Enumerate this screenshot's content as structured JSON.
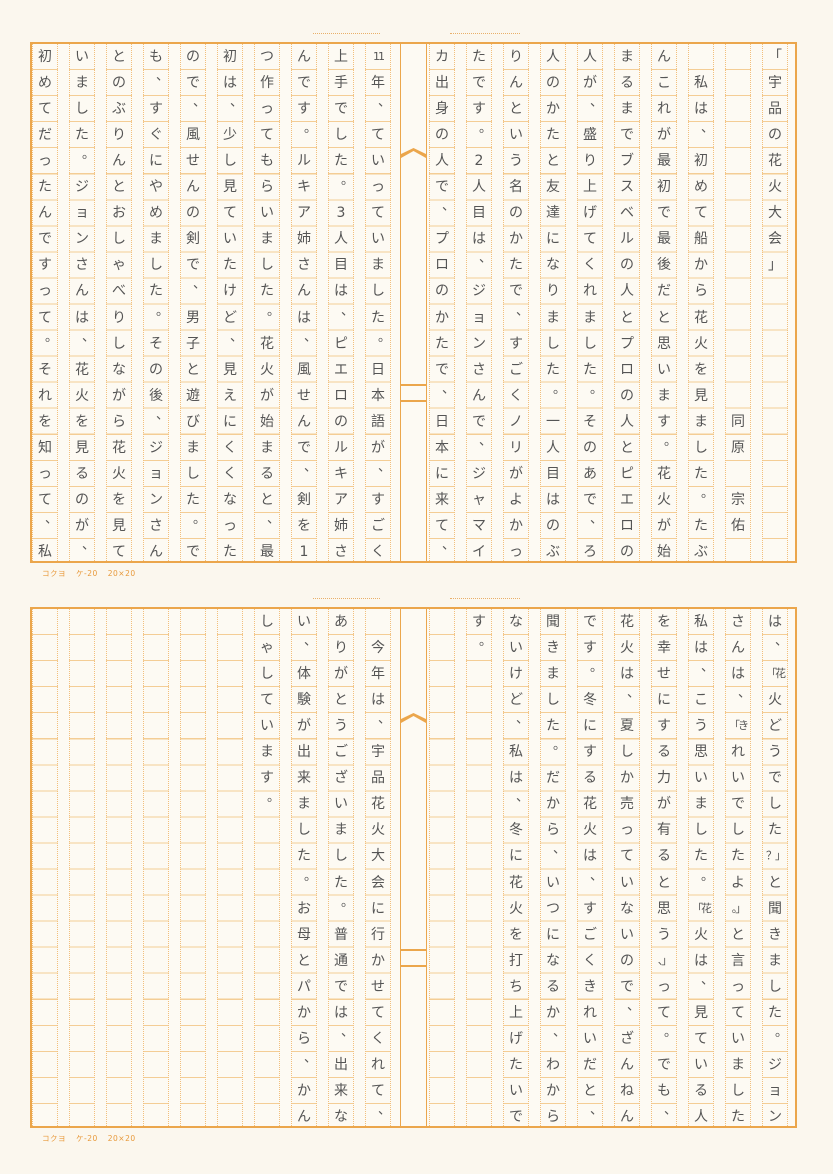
{
  "document": {
    "type": "genkou-youshi manuscript paper",
    "line_color": "#eba64c",
    "ink_color": "#555555"
  },
  "sheets": [
    {
      "columns": [
        [
          "「",
          "宇",
          "品",
          "の",
          "花",
          "火",
          "大",
          "会",
          "」",
          "",
          "",
          "",
          "",
          "",
          "",
          "",
          "",
          "",
          "",
          ""
        ],
        [
          "",
          "",
          "",
          "",
          "",
          "",
          "",
          "",
          "",
          "",
          "",
          "",
          "",
          "",
          "同",
          "原",
          "",
          "宗",
          "佑",
          ""
        ],
        [
          "",
          "私",
          "は",
          "、",
          "初",
          "め",
          "て",
          "船",
          "か",
          "ら",
          "花",
          "火",
          "を",
          "見",
          "ま",
          "し",
          "た",
          "。",
          "た",
          "ぶ"
        ],
        [
          "ん",
          "こ",
          "れ",
          "が",
          "最",
          "初",
          "で",
          "最",
          "後",
          "だ",
          "と",
          "思",
          "い",
          "ま",
          "す",
          "。",
          "花",
          "火",
          "が",
          "始"
        ],
        [
          "ま",
          "る",
          "ま",
          "で",
          "ブ",
          "ス",
          "ベ",
          "ル",
          "の",
          "人",
          "と",
          "プ",
          "ロ",
          "の",
          "人",
          "と",
          "ピ",
          "エ",
          "ロ",
          "の"
        ],
        [
          "人",
          "が",
          "、",
          "盛",
          "り",
          "上",
          "げ",
          "て",
          "く",
          "れ",
          "ま",
          "し",
          "た",
          "。",
          "そ",
          "の",
          "あ",
          "で",
          "、",
          "ろ"
        ],
        [
          "人",
          "の",
          "か",
          "た",
          "と",
          "友",
          "達",
          "に",
          "な",
          "り",
          "ま",
          "し",
          "た",
          "。",
          "一",
          "人",
          "目",
          "は",
          "の",
          "ぶ"
        ],
        [
          "り",
          "ん",
          "と",
          "い",
          "う",
          "名",
          "の",
          "か",
          "た",
          "で",
          "、",
          "す",
          "ご",
          "く",
          "ノ",
          "リ",
          "が",
          "よ",
          "か",
          "っ"
        ],
        [
          "た",
          "で",
          "す",
          "。",
          "2",
          "人",
          "目",
          "は",
          "、",
          "ジ",
          "ョ",
          "ン",
          "さ",
          "ん",
          "で",
          "、",
          "ジ",
          "ャ",
          "マ",
          "イ"
        ],
        [
          "カ",
          "出",
          "身",
          "の",
          "人",
          "で",
          "、",
          "プ",
          "ロ",
          "の",
          "か",
          "た",
          "で",
          "、",
          "日",
          "本",
          "に",
          "来",
          "て",
          "、"
        ],
        [
          "11",
          "年",
          "、",
          "て",
          "い",
          "っ",
          "て",
          "い",
          "ま",
          "し",
          "た",
          "。",
          "日",
          "本",
          "語",
          "が",
          "、",
          "す",
          "ご",
          "く"
        ],
        [
          "上",
          "手",
          "で",
          "し",
          "た",
          "。",
          "3",
          "人",
          "目",
          "は",
          "、",
          "ピ",
          "エ",
          "ロ",
          "の",
          "ル",
          "キ",
          "ア",
          "姉",
          "さ"
        ],
        [
          "ん",
          "で",
          "す",
          "。",
          "ル",
          "キ",
          "ア",
          "姉",
          "さ",
          "ん",
          "は",
          "、",
          "風",
          "せ",
          "ん",
          "で",
          "、",
          "剣",
          "を",
          "1"
        ],
        [
          "つ",
          "作",
          "っ",
          "て",
          "も",
          "ら",
          "い",
          "ま",
          "し",
          "た",
          "。",
          "花",
          "火",
          "が",
          "始",
          "ま",
          "る",
          "と",
          "、",
          "最"
        ],
        [
          "初",
          "は",
          "、",
          "少",
          "し",
          "見",
          "て",
          "い",
          "た",
          "け",
          "ど",
          "、",
          "見",
          "え",
          "に",
          "く",
          "く",
          "な",
          "っ",
          "た"
        ],
        [
          "の",
          "で",
          "、",
          "風",
          "せ",
          "ん",
          "の",
          "剣",
          "で",
          "、",
          "男",
          "子",
          "と",
          "遊",
          "び",
          "ま",
          "し",
          "た",
          "。",
          "で"
        ],
        [
          "も",
          "、",
          "す",
          "ぐ",
          "に",
          "や",
          "め",
          "ま",
          "し",
          "た",
          "。",
          "そ",
          "の",
          "後",
          "、",
          "ジ",
          "ョ",
          "ン",
          "さ",
          "ん"
        ],
        [
          "と",
          "の",
          "ぶ",
          "り",
          "ん",
          "と",
          "お",
          "し",
          "ゃ",
          "べ",
          "り",
          "し",
          "な",
          "が",
          "ら",
          "花",
          "火",
          "を",
          "見",
          "て"
        ],
        [
          "い",
          "ま",
          "し",
          "た",
          "。",
          "ジ",
          "ョ",
          "ン",
          "さ",
          "ん",
          "は",
          "、",
          "花",
          "火",
          "を",
          "見",
          "る",
          "の",
          "が",
          "、"
        ],
        [
          "初",
          "め",
          "て",
          "だ",
          "っ",
          "た",
          "ん",
          "で",
          "す",
          "っ",
          "て",
          "。",
          "そ",
          "れ",
          "を",
          "知",
          "っ",
          "て",
          "、",
          "私"
        ]
      ],
      "footer": {
        "brand": "コクヨ",
        "model": "ケ-20",
        "size": "20×20"
      }
    },
    {
      "columns": [
        [
          "は",
          "、",
          "「花",
          "火",
          "ど",
          "う",
          "で",
          "し",
          "た",
          "？」",
          "と",
          "聞",
          "き",
          "ま",
          "し",
          "た",
          "。",
          "ジ",
          "ョ",
          "ン"
        ],
        [
          "さ",
          "ん",
          "は",
          "、",
          "「き",
          "れ",
          "い",
          "で",
          "し",
          "た",
          "よ",
          "。」",
          "と",
          "言",
          "っ",
          "て",
          "い",
          "ま",
          "し",
          "た"
        ],
        [
          "私",
          "は",
          "、",
          "こ",
          "う",
          "思",
          "い",
          "ま",
          "し",
          "た",
          "。",
          "「花",
          "火",
          "は",
          "、",
          "見",
          "て",
          "い",
          "る",
          "人"
        ],
        [
          "を",
          "幸",
          "せ",
          "に",
          "す",
          "る",
          "力",
          "が",
          "有",
          "る",
          "と",
          "思",
          "う",
          "、」",
          "っ",
          "て",
          "。",
          "で",
          "も",
          "、"
        ],
        [
          "花",
          "火",
          "は",
          "、",
          "夏",
          "し",
          "か",
          "売",
          "っ",
          "て",
          "い",
          "な",
          "い",
          "の",
          "で",
          "、",
          "ざ",
          "ん",
          "ね",
          "ん"
        ],
        [
          "で",
          "す",
          "。",
          "冬",
          "に",
          "す",
          "る",
          "花",
          "火",
          "は",
          "、",
          "す",
          "ご",
          "く",
          "き",
          "れ",
          "い",
          "だ",
          "と",
          "、"
        ],
        [
          "聞",
          "き",
          "ま",
          "し",
          "た",
          "。",
          "だ",
          "か",
          "ら",
          "、",
          "い",
          "つ",
          "に",
          "な",
          "る",
          "か",
          "、",
          "わ",
          "か",
          "ら"
        ],
        [
          "な",
          "い",
          "け",
          "ど",
          "、",
          "私",
          "は",
          "、",
          "冬",
          "に",
          "花",
          "火",
          "を",
          "打",
          "ち",
          "上",
          "げ",
          "た",
          "い",
          "で"
        ],
        [
          "す",
          "。"
        ],
        [],
        [
          "",
          "今",
          "年",
          "は",
          "、",
          "宇",
          "品",
          "花",
          "火",
          "大",
          "会",
          "に",
          "行",
          "か",
          "せ",
          "て",
          "く",
          "れ",
          "て",
          "、"
        ],
        [
          "あ",
          "り",
          "が",
          "と",
          "う",
          "ご",
          "ざ",
          "い",
          "ま",
          "し",
          "た",
          "。",
          "普",
          "通",
          "で",
          "は",
          "、",
          "出",
          "来",
          "な"
        ],
        [
          "い",
          "、",
          "体",
          "験",
          "が",
          "出",
          "来",
          "ま",
          "し",
          "た",
          "。",
          "お",
          "母",
          "と",
          "パ",
          "か",
          "ら",
          "、",
          "か",
          "ん"
        ],
        [
          "し",
          "ゃ",
          "し",
          "て",
          "い",
          "ま",
          "す",
          "。"
        ],
        [],
        [],
        [],
        [],
        [],
        []
      ],
      "footer": {
        "brand": "コクヨ",
        "model": "ケ-20",
        "size": "20×20"
      }
    }
  ]
}
